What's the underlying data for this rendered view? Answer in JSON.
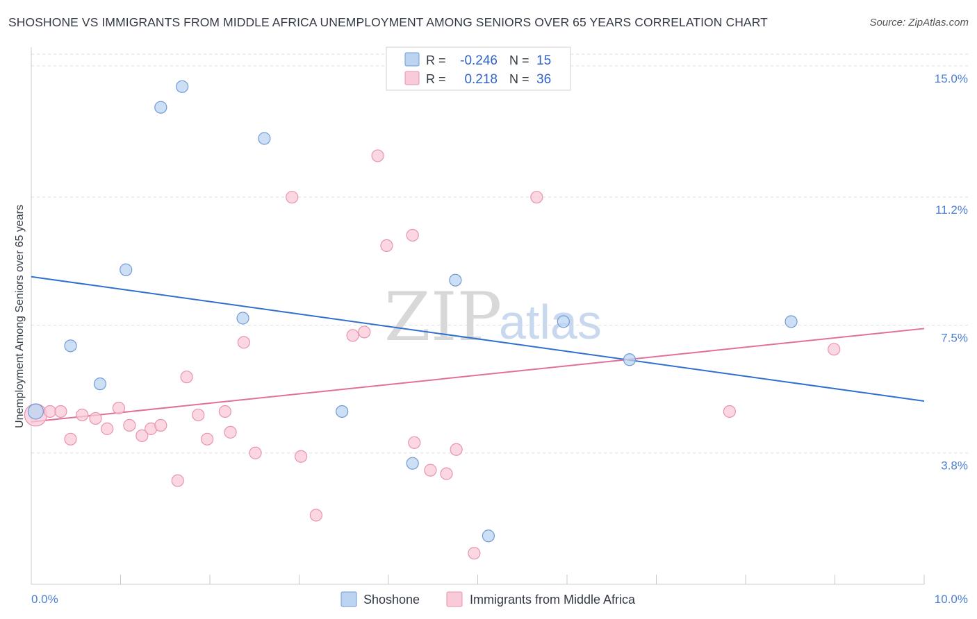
{
  "header": {
    "title": "SHOSHONE VS IMMIGRANTS FROM MIDDLE AFRICA UNEMPLOYMENT AMONG SENIORS OVER 65 YEARS CORRELATION CHART",
    "source": "Source: ZipAtlas.com"
  },
  "watermark": {
    "zip": "ZIP",
    "atlas": "atlas"
  },
  "legend": {
    "rows": [
      {
        "r_label": "R =",
        "r_value": "-0.246",
        "n_label": "N =",
        "n_value": "15"
      },
      {
        "r_label": "R =",
        "r_value": "0.218",
        "n_label": "N =",
        "n_value": "36"
      }
    ]
  },
  "colors": {
    "shoshone_fill": "#bcd4f2",
    "shoshone_stroke": "#6f9ad8",
    "shoshone_line": "#2f70cf",
    "immigrants_fill": "#f9cad8",
    "immigrants_stroke": "#e893ae",
    "immigrants_line": "#e0709a",
    "tick_text": "#4a7fd4",
    "grid": "#dddddd"
  },
  "chart_data": {
    "type": "scatter",
    "title": "SHOSHONE VS IMMIGRANTS FROM MIDDLE AFRICA UNEMPLOYMENT AMONG SENIORS OVER 65 YEARS CORRELATION CHART",
    "xlabel": "",
    "ylabel": "Unemployment Among Seniors over 65 years",
    "xlim": [
      0,
      10
    ],
    "ylim": [
      0,
      15.4
    ],
    "x_tick_labels": {
      "min": "0.0%",
      "max": "10.0%"
    },
    "y_ticks": [
      {
        "value": 3.8,
        "label": "3.8%"
      },
      {
        "value": 7.5,
        "label": "7.5%"
      },
      {
        "value": 11.2,
        "label": "11.2%"
      },
      {
        "value": 15.0,
        "label": "15.0%"
      }
    ],
    "legend_position": "top-center",
    "series": [
      {
        "name": "Shoshone",
        "r": -0.246,
        "n": 15,
        "trend": {
          "x": [
            0,
            10
          ],
          "y": [
            8.9,
            5.3
          ]
        },
        "points": [
          {
            "x": 0.05,
            "y": 5.0
          },
          {
            "x": 0.44,
            "y": 6.9
          },
          {
            "x": 0.77,
            "y": 5.8
          },
          {
            "x": 1.06,
            "y": 9.1
          },
          {
            "x": 1.45,
            "y": 13.8
          },
          {
            "x": 1.69,
            "y": 14.4
          },
          {
            "x": 2.37,
            "y": 7.7
          },
          {
            "x": 2.61,
            "y": 12.9
          },
          {
            "x": 3.48,
            "y": 5.0
          },
          {
            "x": 4.27,
            "y": 3.5
          },
          {
            "x": 4.75,
            "y": 8.8
          },
          {
            "x": 5.12,
            "y": 1.4
          },
          {
            "x": 5.96,
            "y": 7.6
          },
          {
            "x": 6.7,
            "y": 6.5
          },
          {
            "x": 8.51,
            "y": 7.6
          }
        ]
      },
      {
        "name": "Immigrants from Middle Africa",
        "r": 0.218,
        "n": 36,
        "trend": {
          "x": [
            0,
            10
          ],
          "y": [
            4.7,
            7.4
          ]
        },
        "points": [
          {
            "x": 0.05,
            "y": 4.9
          },
          {
            "x": 0.21,
            "y": 5.0
          },
          {
            "x": 0.33,
            "y": 5.0
          },
          {
            "x": 0.44,
            "y": 4.2
          },
          {
            "x": 0.57,
            "y": 4.9
          },
          {
            "x": 0.72,
            "y": 4.8
          },
          {
            "x": 0.85,
            "y": 4.5
          },
          {
            "x": 0.98,
            "y": 5.1
          },
          {
            "x": 1.1,
            "y": 4.6
          },
          {
            "x": 1.24,
            "y": 4.3
          },
          {
            "x": 1.34,
            "y": 4.5
          },
          {
            "x": 1.45,
            "y": 4.6
          },
          {
            "x": 1.64,
            "y": 3.0
          },
          {
            "x": 1.74,
            "y": 6.0
          },
          {
            "x": 1.87,
            "y": 4.9
          },
          {
            "x": 1.97,
            "y": 4.2
          },
          {
            "x": 2.17,
            "y": 5.0
          },
          {
            "x": 2.23,
            "y": 4.4
          },
          {
            "x": 2.38,
            "y": 7.0
          },
          {
            "x": 2.51,
            "y": 3.8
          },
          {
            "x": 2.92,
            "y": 11.2
          },
          {
            "x": 3.02,
            "y": 3.7
          },
          {
            "x": 3.19,
            "y": 2.0
          },
          {
            "x": 3.6,
            "y": 7.2
          },
          {
            "x": 3.73,
            "y": 7.3
          },
          {
            "x": 3.88,
            "y": 12.4
          },
          {
            "x": 3.98,
            "y": 9.8
          },
          {
            "x": 4.27,
            "y": 10.1
          },
          {
            "x": 4.29,
            "y": 4.1
          },
          {
            "x": 4.47,
            "y": 3.3
          },
          {
            "x": 4.65,
            "y": 3.2
          },
          {
            "x": 4.76,
            "y": 3.9
          },
          {
            "x": 4.96,
            "y": 0.9
          },
          {
            "x": 5.66,
            "y": 11.2
          },
          {
            "x": 7.82,
            "y": 5.0
          },
          {
            "x": 8.99,
            "y": 6.8
          }
        ]
      }
    ],
    "bottom_legend": [
      "Shoshone",
      "Immigrants from Middle Africa"
    ]
  }
}
